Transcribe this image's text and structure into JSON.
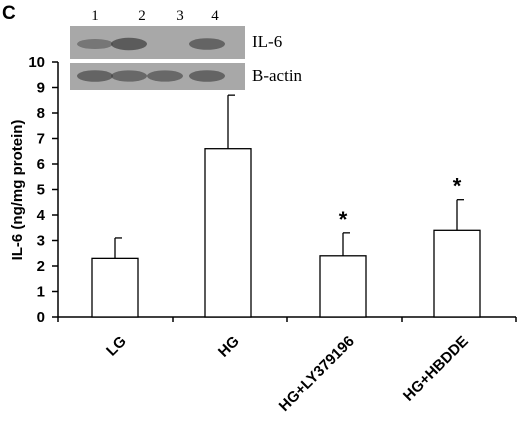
{
  "panel_letter": "C",
  "blot": {
    "lanes": [
      "1",
      "2",
      "3",
      "4"
    ],
    "rows": [
      {
        "label": "IL-6",
        "band_intensity": [
          0.35,
          0.75,
          0.05,
          0.6
        ]
      },
      {
        "label": "B-actin",
        "band_intensity": [
          0.6,
          0.55,
          0.55,
          0.6
        ]
      }
    ],
    "colors": {
      "background": "#a8a8a8",
      "band": "#3a3a3a"
    }
  },
  "chart_data": {
    "type": "bar",
    "categories": [
      "LG",
      "HG",
      "HG+LY379196",
      "HG+HBDDE"
    ],
    "values": [
      2.3,
      6.6,
      2.4,
      3.4
    ],
    "error": [
      0.8,
      2.1,
      0.9,
      1.2
    ],
    "significance": [
      "",
      "",
      "*",
      "*"
    ],
    "title": "",
    "xlabel": "",
    "ylabel": "IL-6 (ng/mg protein)",
    "ylim": [
      0,
      10
    ],
    "yticks": [
      "0",
      "1",
      "2",
      "3",
      "4",
      "5",
      "6",
      "7",
      "8",
      "9",
      "10"
    ],
    "bar_fill": "#ffffff",
    "bar_stroke": "#000000",
    "grid": false
  }
}
